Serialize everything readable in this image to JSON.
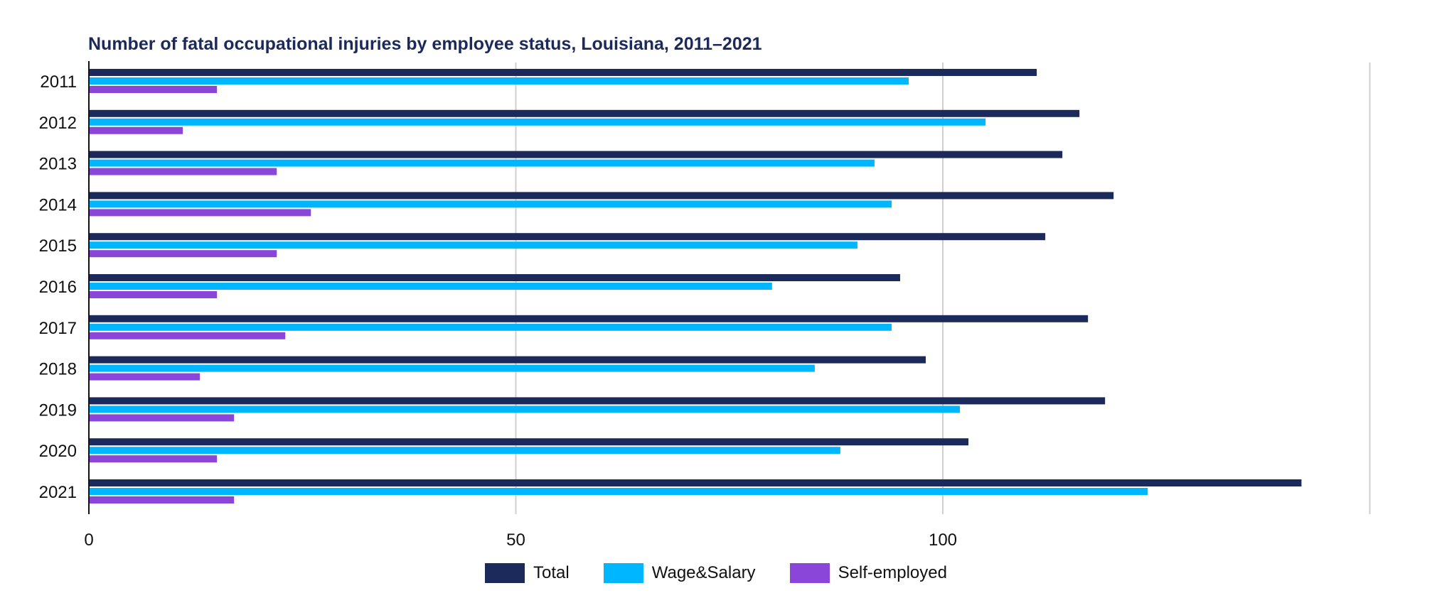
{
  "chart_data": {
    "type": "bar",
    "orientation": "horizontal",
    "title": "Number of fatal occupational injuries by employee status, Louisiana, 2011–2021",
    "categories": [
      "2011",
      "2012",
      "2013",
      "2014",
      "2015",
      "2016",
      "2017",
      "2018",
      "2019",
      "2020",
      "2021"
    ],
    "series": [
      {
        "name": "Total",
        "color": "#1b2a5a",
        "values": [
          111,
          116,
          114,
          120,
          112,
          95,
          117,
          98,
          119,
          103,
          142
        ]
      },
      {
        "name": "Wage&Salary",
        "color": "#00b7ff",
        "values": [
          96,
          105,
          92,
          94,
          90,
          80,
          94,
          85,
          102,
          88,
          124
        ]
      },
      {
        "name": "Self-employed",
        "color": "#8a45d9",
        "values": [
          15,
          11,
          22,
          26,
          22,
          15,
          23,
          13,
          17,
          15,
          17
        ]
      }
    ],
    "xlim": [
      0,
      150
    ],
    "xticks": [
      0,
      50,
      100,
      150
    ],
    "xtick_labels": [
      "0",
      "50",
      "100",
      ""
    ],
    "grid": true,
    "legend": "bottom-center",
    "xlabel": "",
    "ylabel": ""
  }
}
